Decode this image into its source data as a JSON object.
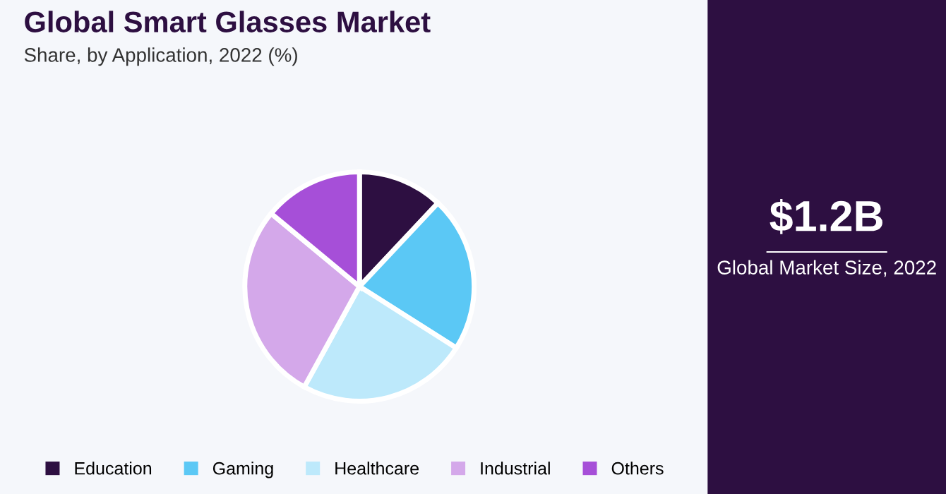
{
  "chart_data": [
    {
      "type": "pie",
      "title": "Global Smart Glasses Market",
      "subtitle": "Share, by Application, 2022 (%)",
      "categories": [
        "Education",
        "Gaming",
        "Healthcare",
        "Industrial",
        "Others"
      ],
      "values": [
        12,
        22,
        24,
        28,
        14
      ],
      "colors": [
        "#2d0f41",
        "#5bc8f5",
        "#bde9fb",
        "#d4a8ea",
        "#a64fd8"
      ],
      "legend": "bottom"
    },
    {
      "type": "other",
      "title": "$1.2B",
      "subtitle": "Global Market Size, 2022"
    }
  ]
}
